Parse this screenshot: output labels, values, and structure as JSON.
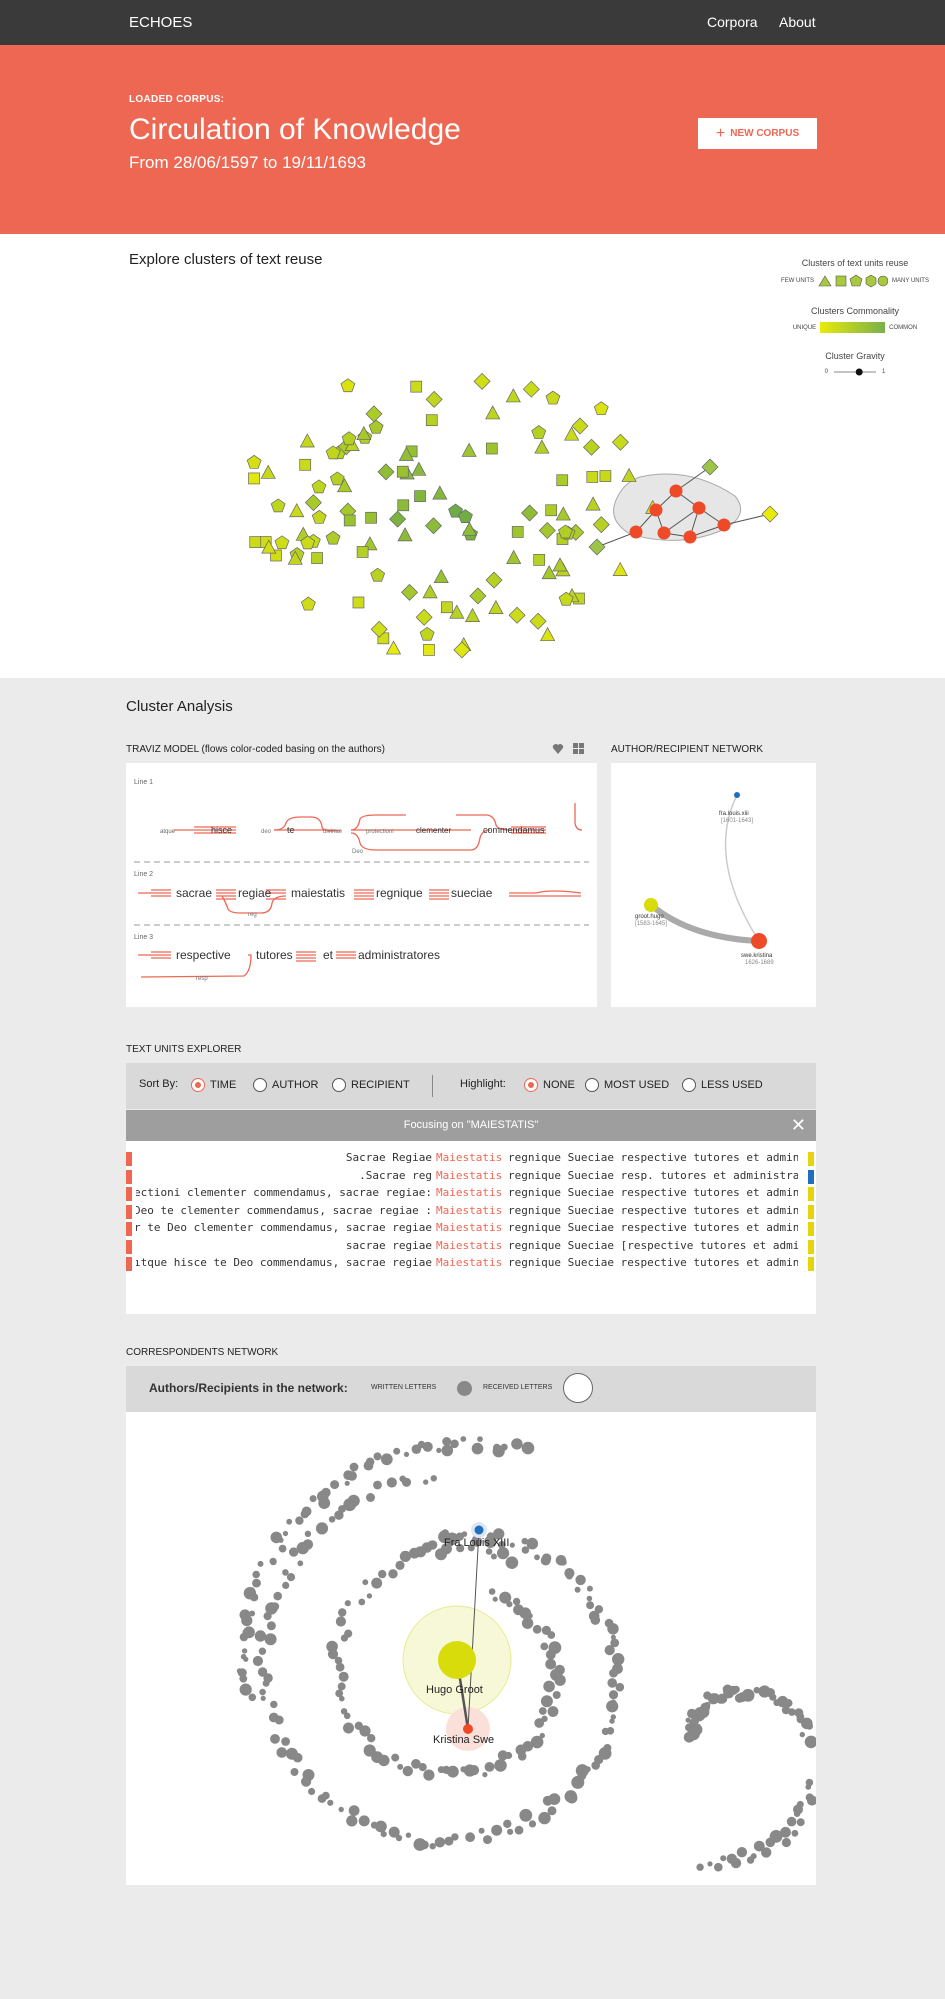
{
  "header": {
    "brand": "ECHOES",
    "nav": [
      "Corpora",
      "About"
    ]
  },
  "hero": {
    "kicker": "LOADED CORPUS:",
    "title": "Circulation of Knowledge",
    "subtitle": "From 28/06/1597 to 19/11/1693",
    "new_corpus_label": "NEW CORPUS"
  },
  "clusters": {
    "title": "Explore clusters of text reuse",
    "legend": {
      "reuse_title": "Clusters of text units reuse",
      "few_units": "FEW UNITS",
      "many_units": "MANY UNITS",
      "commonality_title": "Clusters Commonality",
      "unique": "UNIQUE",
      "common": "COMMON",
      "gravity_title": "Cluster Gravity",
      "gravity_min": "0",
      "gravity_max": "1",
      "gravity_value": 0.6
    }
  },
  "analysis": {
    "title": "Cluster Analysis",
    "traviz_label": "TRAVIZ MODEL (flows color-coded basing on the authors)",
    "network_label": "AUTHOR/RECIPIENT NETWORK",
    "traviz": {
      "lines": [
        "Line 1",
        "Line 2",
        "Line 3"
      ],
      "line1": [
        "atque",
        "hisce",
        "deo",
        "te",
        "divinae",
        "protectioni",
        "clementer",
        "commendamus",
        "Deo"
      ],
      "line2": [
        "sacrae",
        "regiae",
        "maiestatis",
        "regnique",
        "sueciae",
        "reg"
      ],
      "line3": [
        "respective",
        "tutores",
        "et",
        "administratores",
        "resp"
      ]
    },
    "ar_network": [
      {
        "name": "fra.louis.xiii",
        "years": "[1601-1643]"
      },
      {
        "name": "groot.hugo",
        "years": "[1583-1645]"
      },
      {
        "name": "swe.kristina",
        "years": "1626-1689"
      }
    ]
  },
  "explorer": {
    "title": "TEXT UNITS EXPLORER",
    "sort_by_label": "Sort By:",
    "sort_options": [
      "TIME",
      "AUTHOR",
      "RECIPIENT"
    ],
    "sort_selected": "TIME",
    "highlight_label": "Highlight:",
    "highlight_options": [
      "NONE",
      "MOST USED",
      "LESS USED"
    ],
    "highlight_selected": "NONE",
    "focus_text": "Focusing on \"MAIESTATIS\"",
    "rows": [
      {
        "left": "Sacrae Regiae ",
        "key": "Maiestatis",
        "right": " regnique Sueciae respective tutores et admini",
        "color": "#e5d40c"
      },
      {
        "left": "Sacrae reg. ",
        "key": "Maiestatis",
        "right": " regnique Sueciae resp. tutores et administrat",
        "color": "#1f6fc0"
      },
      {
        "left": ":ectioni clementer commendamus, sacrae regiae ",
        "key": "Maiestatis",
        "right": " regnique Sueciae respective tutores et admini",
        "color": "#e5d40c"
      },
      {
        "left": ": Deo te clementer commendamus, sacrae regiae ",
        "key": "Maiestatis",
        "right": " regnique Sueciae respective tutores et admini",
        "color": "#e5d40c"
      },
      {
        "left": "r te Deo clementer commendamus, sacrae regiae ",
        "key": "Maiestatis",
        "right": " regnique Sueciae respective tutores et admini",
        "color": "#e5d40c"
      },
      {
        "left": "sacrae regiae ",
        "key": "Maiestatis",
        "right": " regnique Sueciae [respective tutores et admir",
        "color": "#e5d40c"
      },
      {
        "left": "ıtque hisce te Deo commendamus, sacrae regiae ",
        "key": "Maiestatis",
        "right": " regnique Sueciae respective tutores et admini",
        "color": "#e5d40c"
      }
    ]
  },
  "correspondents": {
    "title": "CORRESPONDENTS NETWORK",
    "bar_label": "Authors/Recipients in the network:",
    "written_label": "WRITTEN LETTERS",
    "received_label": "RECEIVED LETTERS",
    "nodes": [
      "Fra Louis XIII",
      "Hugo Groot",
      "Kristina Swe"
    ]
  },
  "colors": {
    "accent": "#ee6753",
    "topbar": "#3a3a3a",
    "node_gray": "#888888",
    "hugo": "#d7dc0a",
    "louis": "#1f6fc0"
  }
}
